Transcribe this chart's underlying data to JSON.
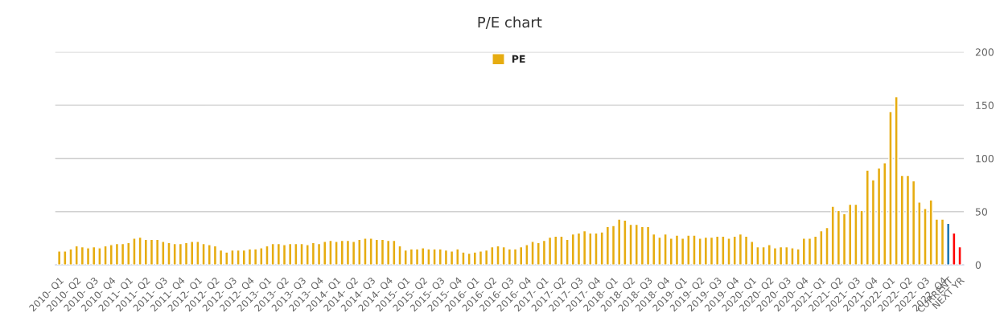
{
  "chart_data": {
    "type": "bar",
    "title": "P/E chart",
    "categories": [
      "2010- Q1",
      null,
      null,
      "2010- Q2",
      null,
      null,
      "2010- Q3",
      null,
      null,
      "2010- Q4",
      null,
      null,
      "2011- Q1",
      null,
      null,
      "2011- Q2",
      null,
      null,
      "2011- Q3",
      null,
      null,
      "2011- Q4",
      null,
      null,
      "2012- Q1",
      null,
      null,
      "2012- Q2",
      null,
      null,
      "2012- Q3",
      null,
      null,
      "2012- Q4",
      null,
      null,
      "2013- Q1",
      null,
      null,
      "2013- Q2",
      null,
      null,
      "2013- Q3",
      null,
      null,
      "2013- Q4",
      null,
      null,
      "2014- Q1",
      null,
      null,
      "2014- Q2",
      null,
      null,
      "2014- Q3",
      null,
      null,
      "2014- Q4",
      null,
      null,
      "2015- Q1",
      null,
      null,
      "2015- Q2",
      null,
      null,
      "2015- Q3",
      null,
      null,
      "2015- Q4",
      null,
      null,
      "2016- Q1",
      null,
      null,
      "2016- Q2",
      null,
      null,
      "2016- Q3",
      null,
      null,
      "2016- Q4",
      null,
      null,
      "2017- Q1",
      null,
      null,
      "2017- Q2",
      null,
      null,
      "2017- Q3",
      null,
      null,
      "2017- Q4",
      null,
      null,
      "2018- Q1",
      null,
      null,
      "2018- Q2",
      null,
      null,
      "2018- Q3",
      null,
      null,
      "2018- Q4",
      null,
      null,
      "2019- Q1",
      null,
      null,
      "2019- Q2",
      null,
      null,
      "2019- Q3",
      null,
      null,
      "2019- Q4",
      null,
      null,
      "2020- Q1",
      null,
      null,
      "2020- Q2",
      null,
      null,
      "2020- Q3",
      null,
      null,
      "2020- Q4",
      null,
      null,
      "2021- Q1",
      null,
      null,
      "2021- Q2",
      null,
      null,
      "2021- Q3",
      null,
      null,
      "2021- Q4",
      null,
      null,
      "2022- Q1",
      null,
      null,
      "2022- Q2",
      null,
      null,
      "2022- Q3",
      null,
      null,
      "2022- Q4",
      "CURRENT",
      null,
      "NEXT YR"
    ],
    "series": [
      {
        "name": "PE",
        "color": "#e6ac10",
        "values": [
          13,
          13,
          15,
          18,
          17,
          16,
          17,
          16,
          18,
          19,
          20,
          20,
          21,
          25,
          26,
          24,
          24,
          24,
          22,
          21,
          20,
          20,
          21,
          22,
          22,
          20,
          19,
          18,
          14,
          12,
          14,
          14,
          14,
          15,
          15,
          16,
          18,
          20,
          20,
          19,
          20,
          20,
          20,
          19,
          21,
          20,
          22,
          23,
          22,
          23,
          23,
          22,
          24,
          25,
          25,
          24,
          24,
          23,
          23,
          18,
          14,
          15,
          15,
          16,
          15,
          15,
          15,
          14,
          13,
          15,
          12,
          11,
          12,
          13,
          14,
          17,
          18,
          17,
          15,
          15,
          17,
          19,
          22,
          21,
          23,
          26,
          27,
          27,
          24,
          29,
          30,
          32,
          30,
          30,
          31,
          36,
          37,
          43,
          42,
          38,
          38,
          36,
          36,
          29,
          26,
          29,
          25,
          28,
          25,
          28,
          28,
          25,
          26,
          26,
          27,
          27,
          25,
          27,
          29,
          27,
          22,
          17,
          17,
          19,
          16,
          17,
          17,
          16,
          15,
          25,
          25,
          27,
          32,
          35,
          55,
          51,
          48,
          57,
          57,
          51,
          89,
          80,
          91,
          96,
          144,
          158,
          84,
          84,
          79,
          59,
          53,
          61,
          43,
          43,
          39,
          30,
          17
        ],
        "colors": [
          "#e6ac10",
          "#e6ac10",
          "#e6ac10",
          "#e6ac10",
          "#e6ac10",
          "#e6ac10",
          "#e6ac10",
          "#e6ac10",
          "#e6ac10",
          "#e6ac10",
          "#e6ac10",
          "#e6ac10",
          "#e6ac10",
          "#e6ac10",
          "#e6ac10",
          "#e6ac10",
          "#e6ac10",
          "#e6ac10",
          "#e6ac10",
          "#e6ac10",
          "#e6ac10",
          "#e6ac10",
          "#e6ac10",
          "#e6ac10",
          "#e6ac10",
          "#e6ac10",
          "#e6ac10",
          "#e6ac10",
          "#e6ac10",
          "#e6ac10",
          "#e6ac10",
          "#e6ac10",
          "#e6ac10",
          "#e6ac10",
          "#e6ac10",
          "#e6ac10",
          "#e6ac10",
          "#e6ac10",
          "#e6ac10",
          "#e6ac10",
          "#e6ac10",
          "#e6ac10",
          "#e6ac10",
          "#e6ac10",
          "#e6ac10",
          "#e6ac10",
          "#e6ac10",
          "#e6ac10",
          "#e6ac10",
          "#e6ac10",
          "#e6ac10",
          "#e6ac10",
          "#e6ac10",
          "#e6ac10",
          "#e6ac10",
          "#e6ac10",
          "#e6ac10",
          "#e6ac10",
          "#e6ac10",
          "#e6ac10",
          "#e6ac10",
          "#e6ac10",
          "#e6ac10",
          "#e6ac10",
          "#e6ac10",
          "#e6ac10",
          "#e6ac10",
          "#e6ac10",
          "#e6ac10",
          "#e6ac10",
          "#e6ac10",
          "#e6ac10",
          "#e6ac10",
          "#e6ac10",
          "#e6ac10",
          "#e6ac10",
          "#e6ac10",
          "#e6ac10",
          "#e6ac10",
          "#e6ac10",
          "#e6ac10",
          "#e6ac10",
          "#e6ac10",
          "#e6ac10",
          "#e6ac10",
          "#e6ac10",
          "#e6ac10",
          "#e6ac10",
          "#e6ac10",
          "#e6ac10",
          "#e6ac10",
          "#e6ac10",
          "#e6ac10",
          "#e6ac10",
          "#e6ac10",
          "#e6ac10",
          "#e6ac10",
          "#e6ac10",
          "#e6ac10",
          "#e6ac10",
          "#e6ac10",
          "#e6ac10",
          "#e6ac10",
          "#e6ac10",
          "#e6ac10",
          "#e6ac10",
          "#e6ac10",
          "#e6ac10",
          "#e6ac10",
          "#e6ac10",
          "#e6ac10",
          "#e6ac10",
          "#e6ac10",
          "#e6ac10",
          "#e6ac10",
          "#e6ac10",
          "#e6ac10",
          "#e6ac10",
          "#e6ac10",
          "#e6ac10",
          "#e6ac10",
          "#e6ac10",
          "#e6ac10",
          "#e6ac10",
          "#e6ac10",
          "#e6ac10",
          "#e6ac10",
          "#e6ac10",
          "#e6ac10",
          "#e6ac10",
          "#e6ac10",
          "#e6ac10",
          "#e6ac10",
          "#e6ac10",
          "#e6ac10",
          "#e6ac10",
          "#e6ac10",
          "#e6ac10",
          "#e6ac10",
          "#e6ac10",
          "#e6ac10",
          "#e6ac10",
          "#e6ac10",
          "#e6ac10",
          "#e6ac10",
          "#e6ac10",
          "#e6ac10",
          "#e6ac10",
          "#e6ac10",
          "#e6ac10",
          "#e6ac10",
          "#e6ac10",
          "#e6ac10",
          "#e6ac10",
          "#1f78b4",
          "#ff0000",
          "#ff0000"
        ]
      }
    ],
    "ylim": [
      0,
      200
    ],
    "yticks": [
      0,
      50,
      100,
      150,
      200
    ],
    "grid": "y",
    "legend": "top"
  }
}
